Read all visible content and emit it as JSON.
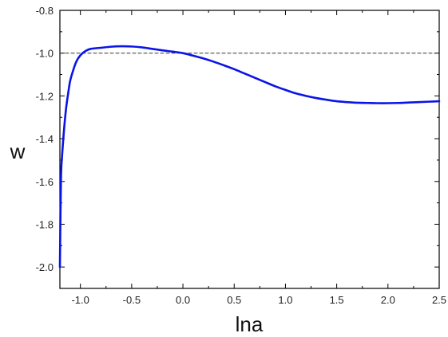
{
  "chart_data": {
    "type": "line",
    "title": "",
    "xlabel": "lna",
    "ylabel": "w",
    "xlim": [
      -1.2,
      2.5
    ],
    "ylim": [
      -2.1,
      -0.8
    ],
    "grid": false,
    "x_ticks": [
      -1.0,
      -0.5,
      0.0,
      0.5,
      1.0,
      1.5,
      2.0,
      2.5
    ],
    "x_tick_labels": [
      "-1.0",
      "-0.5",
      "0.0",
      "0.5",
      "1.0",
      "1.5",
      "2.0",
      "2.5"
    ],
    "y_ticks": [
      -2.0,
      -1.8,
      -1.6,
      -1.4,
      -1.2,
      -1.0,
      -0.8
    ],
    "y_tick_labels": [
      "-2.0",
      "-1.8",
      "-1.6",
      "-1.4",
      "-1.2",
      "-1.0",
      "-0.8"
    ],
    "series": [
      {
        "color": "#0a14e6",
        "style": "solid",
        "x": [
          -1.2,
          -1.19,
          -1.18,
          -1.16,
          -1.14,
          -1.12,
          -1.1,
          -1.07,
          -1.04,
          -1.0,
          -0.95,
          -0.9,
          -0.8,
          -0.7,
          -0.6,
          -0.5,
          -0.4,
          -0.3,
          -0.2,
          -0.1,
          0.0,
          0.1,
          0.2,
          0.3,
          0.4,
          0.5,
          0.6,
          0.7,
          0.8,
          0.9,
          1.0,
          1.1,
          1.2,
          1.3,
          1.4,
          1.5,
          1.6,
          1.7,
          1.8,
          1.9,
          2.0,
          2.1,
          2.2,
          2.3,
          2.4,
          2.5
        ],
        "y": [
          -2.0,
          -1.6,
          -1.49,
          -1.36,
          -1.26,
          -1.19,
          -1.13,
          -1.08,
          -1.04,
          -1.01,
          -0.99,
          -0.98,
          -0.975,
          -0.97,
          -0.968,
          -0.969,
          -0.973,
          -0.98,
          -0.987,
          -0.993,
          -1.0,
          -1.012,
          -1.025,
          -1.04,
          -1.057,
          -1.075,
          -1.095,
          -1.115,
          -1.135,
          -1.155,
          -1.172,
          -1.188,
          -1.2,
          -1.21,
          -1.218,
          -1.225,
          -1.229,
          -1.232,
          -1.233,
          -1.234,
          -1.234,
          -1.233,
          -1.231,
          -1.229,
          -1.227,
          -1.225
        ]
      },
      {
        "color": "#333333",
        "style": "dashed",
        "x": [
          -1.2,
          2.5
        ],
        "y": [
          -1.0,
          -1.0
        ]
      }
    ]
  }
}
